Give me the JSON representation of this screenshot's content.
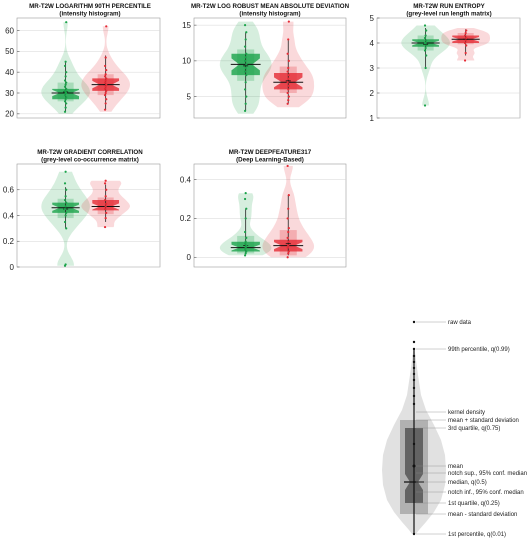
{
  "chart_data": [
    {
      "type": "violin",
      "title": "MR-T2W LOGARITHM 90TH PERCENTILE",
      "subtitle": "(intensity histogram)",
      "ylim": [
        18,
        66
      ],
      "yticks": [
        "20",
        "30",
        "40",
        "50",
        "60"
      ],
      "grid": true,
      "series": [
        {
          "color": "#1aa34a",
          "min": 20,
          "q01": 21,
          "q25": 27,
          "median": 30,
          "mean": 30.5,
          "q75": 32,
          "q99": 45,
          "max": 64,
          "sd_low": 26,
          "sd_high": 35,
          "points": [
            21,
            23,
            25,
            26,
            27,
            28,
            29,
            30,
            30,
            31,
            31,
            32,
            33,
            34,
            35,
            36,
            38,
            40,
            43,
            45,
            64
          ]
        },
        {
          "color": "#e52b35",
          "min": 21,
          "q01": 22,
          "q25": 31,
          "median": 34,
          "mean": 34,
          "q75": 37,
          "q99": 48,
          "max": 62,
          "sd_low": 29,
          "sd_high": 39,
          "points": [
            22,
            25,
            27,
            29,
            30,
            31,
            32,
            33,
            34,
            35,
            36,
            37,
            38,
            39,
            41,
            43,
            47,
            62
          ]
        }
      ]
    },
    {
      "type": "violin",
      "title": "MR-T2W LOG ROBUST MEAN ABSOLUTE DEVIATION",
      "subtitle": "(intensity histogram)",
      "ylim": [
        2,
        16
      ],
      "yticks": [
        "5",
        "10",
        "15"
      ],
      "grid": true,
      "series": [
        {
          "color": "#1aa34a",
          "min": 2.6,
          "q01": 3,
          "q25": 8,
          "median": 9.5,
          "mean": 9.3,
          "q75": 11,
          "q99": 14,
          "max": 15.5,
          "sd_low": 7.2,
          "sd_high": 11.6,
          "points": [
            3,
            4,
            5,
            6,
            7,
            8,
            8.5,
            9,
            9.5,
            10,
            10.5,
            11,
            12,
            13,
            14,
            15
          ]
        },
        {
          "color": "#e52b35",
          "min": 3.5,
          "q01": 4,
          "q25": 6,
          "median": 7,
          "mean": 7.2,
          "q75": 8.3,
          "q99": 13,
          "max": 15.5,
          "sd_low": 5.5,
          "sd_high": 9.2,
          "points": [
            4,
            4.5,
            5,
            5.5,
            6,
            6.5,
            7,
            7.5,
            8,
            8.5,
            9,
            10,
            11,
            13,
            15.5
          ]
        }
      ]
    },
    {
      "type": "violin",
      "title": "MR-T2W RUN ENTROPY",
      "subtitle": "(grey-level run length matrix)",
      "ylim": [
        1,
        5
      ],
      "yticks": [
        "1",
        "2",
        "3",
        "4",
        "5"
      ],
      "grid": true,
      "series": [
        {
          "color": "#1aa34a",
          "min": 1.5,
          "q01": 3,
          "q25": 3.85,
          "median": 4.0,
          "mean": 3.95,
          "q75": 4.15,
          "q99": 4.6,
          "max": 4.7,
          "sd_low": 3.7,
          "sd_high": 4.3,
          "points": [
            1.5,
            3.0,
            3.5,
            3.7,
            3.8,
            3.9,
            4.0,
            4.0,
            4.1,
            4.2,
            4.3,
            4.5,
            4.7
          ]
        },
        {
          "color": "#e52b35",
          "min": 3.3,
          "q01": 3.5,
          "q25": 4.0,
          "median": 4.15,
          "mean": 4.15,
          "q75": 4.3,
          "q99": 4.55,
          "max": 4.6,
          "sd_low": 3.95,
          "sd_high": 4.4,
          "points": [
            3.3,
            3.6,
            3.9,
            4.0,
            4.1,
            4.2,
            4.3,
            4.4,
            4.5
          ]
        }
      ]
    },
    {
      "type": "violin",
      "title": "MR-T2W GRADIENT CORRELATION",
      "subtitle": "(grey-level co-occurrence matrix)",
      "ylim": [
        0,
        0.8
      ],
      "yticks": [
        "0",
        "0.2",
        "0.4",
        "0.6"
      ],
      "grid": true,
      "series": [
        {
          "color": "#1aa34a",
          "min": 0.01,
          "q01": 0.3,
          "q25": 0.42,
          "median": 0.46,
          "mean": 0.45,
          "q75": 0.5,
          "q99": 0.62,
          "max": 0.74,
          "sd_low": 0.38,
          "sd_high": 0.53,
          "points": [
            0.01,
            0.02,
            0.3,
            0.35,
            0.4,
            0.42,
            0.45,
            0.47,
            0.5,
            0.52,
            0.55,
            0.6,
            0.65,
            0.74
          ]
        },
        {
          "color": "#e52b35",
          "min": 0.31,
          "q01": 0.35,
          "q25": 0.44,
          "median": 0.47,
          "mean": 0.47,
          "q75": 0.52,
          "q99": 0.64,
          "max": 0.67,
          "sd_low": 0.41,
          "sd_high": 0.54,
          "points": [
            0.31,
            0.38,
            0.42,
            0.45,
            0.47,
            0.49,
            0.52,
            0.55,
            0.6,
            0.65,
            0.67
          ]
        }
      ]
    },
    {
      "type": "violin",
      "title": "MR-T2W DEEPFEATURE317",
      "subtitle": "(Deep Learning-Based)",
      "ylim": [
        -0.05,
        0.48
      ],
      "yticks": [
        "0",
        "0.2",
        "0.4"
      ],
      "grid": true,
      "series": [
        {
          "color": "#1aa34a",
          "min": 0.01,
          "q01": 0.02,
          "q25": 0.03,
          "median": 0.05,
          "mean": 0.06,
          "q75": 0.08,
          "q99": 0.25,
          "max": 0.33,
          "sd_low": 0.02,
          "sd_high": 0.11,
          "points": [
            0.01,
            0.02,
            0.03,
            0.04,
            0.05,
            0.06,
            0.07,
            0.08,
            0.1,
            0.13,
            0.2,
            0.25,
            0.3,
            0.33
          ]
        },
        {
          "color": "#e52b35",
          "min": 0.0,
          "q01": 0.01,
          "q25": 0.03,
          "median": 0.06,
          "mean": 0.07,
          "q75": 0.09,
          "q99": 0.32,
          "max": 0.47,
          "sd_low": 0.01,
          "sd_high": 0.14,
          "points": [
            0.0,
            0.02,
            0.03,
            0.05,
            0.06,
            0.08,
            0.1,
            0.13,
            0.15,
            0.2,
            0.25,
            0.32,
            0.47
          ]
        }
      ]
    }
  ],
  "legend": {
    "labels": [
      {
        "key": "raw",
        "text": "raw data"
      },
      {
        "key": "q99",
        "text": "99th percentile, q(0.99)"
      },
      {
        "key": "kde",
        "text": "kernel density"
      },
      {
        "key": "sdhigh",
        "text": "mean + standard deviation"
      },
      {
        "key": "q75",
        "text": "3rd quartile, q(0.75)"
      },
      {
        "key": "mean",
        "text": "mean"
      },
      {
        "key": "nsup",
        "text": "notch sup., 95% conf. median"
      },
      {
        "key": "median",
        "text": "median, q(0.5)"
      },
      {
        "key": "ninf",
        "text": "notch inf., 95% conf. median"
      },
      {
        "key": "q25",
        "text": "1st quartile, q(0.25)"
      },
      {
        "key": "sdlow",
        "text": "mean - standard deviation"
      },
      {
        "key": "q01",
        "text": "1st percentile, q(0.01)"
      }
    ]
  }
}
